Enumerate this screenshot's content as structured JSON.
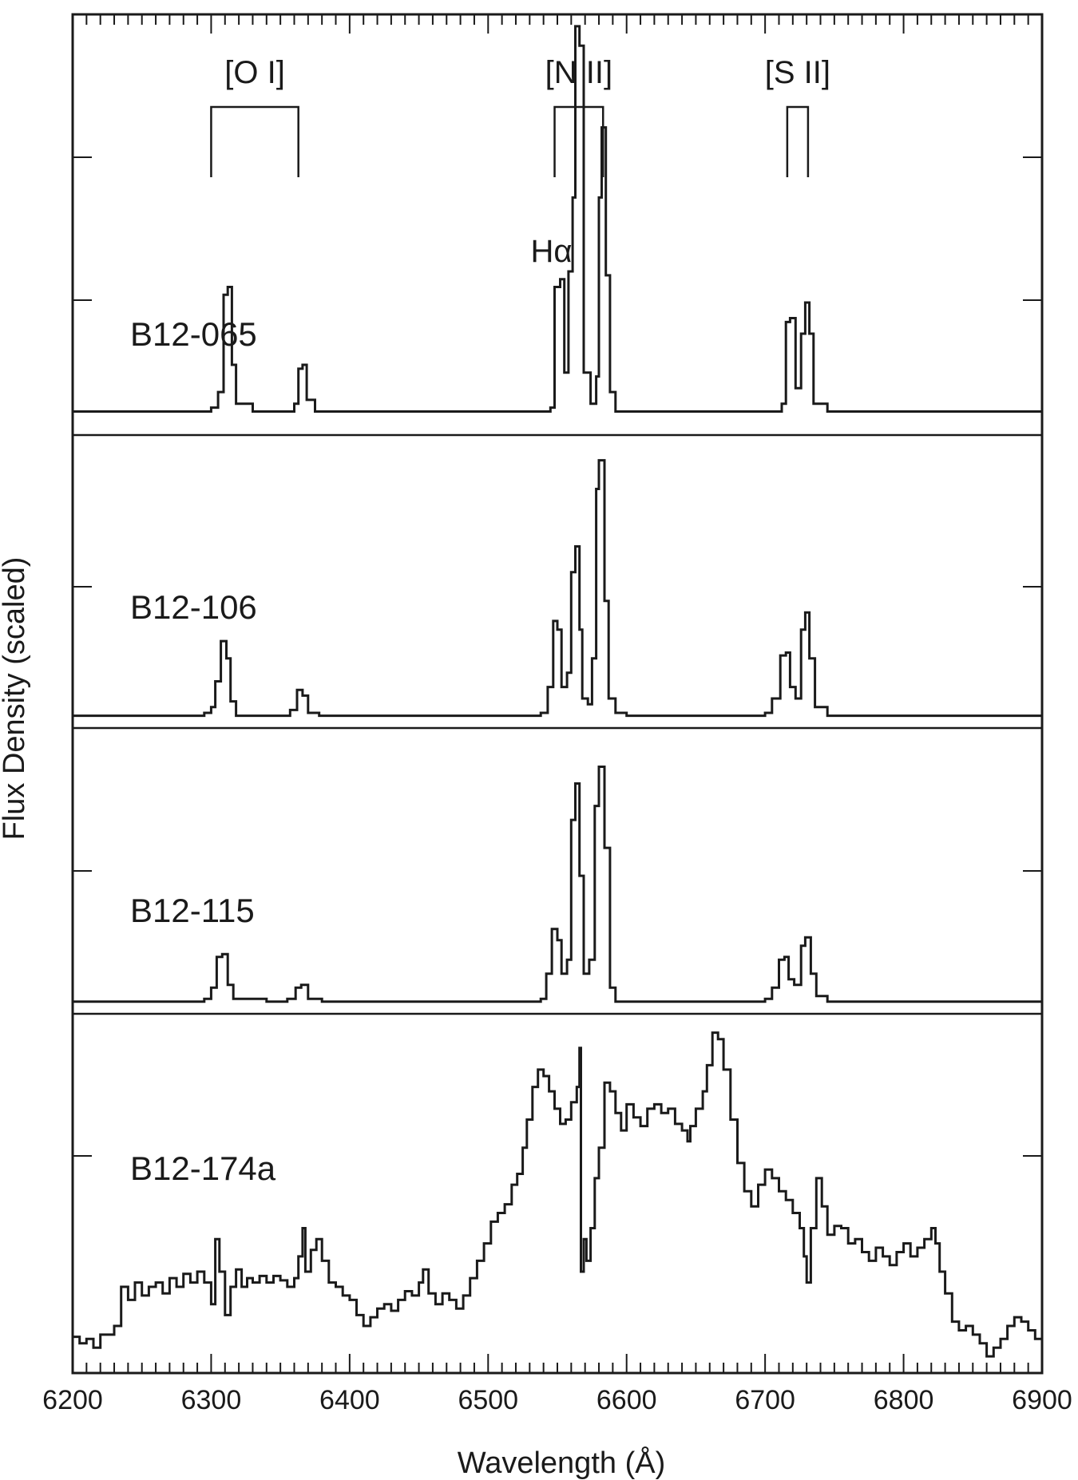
{
  "chart_data": {
    "type": "line",
    "title": "",
    "xlabel": "Wavelength (Å)",
    "ylabel": "Flux Density (scaled)",
    "xlim": [
      6200,
      6900
    ],
    "x_ticks": [
      "6200",
      "6300",
      "6400",
      "6500",
      "6600",
      "6700",
      "6800",
      "6900"
    ],
    "x_minor_step": 10,
    "grid": false,
    "legend": "none",
    "stacked_panels": true,
    "line_identifications": [
      {
        "label": "[O I]",
        "lines": [
          6300,
          6363
        ]
      },
      {
        "label": "[N II]",
        "lines": [
          6548,
          6583
        ]
      },
      {
        "label": "[S II]",
        "lines": [
          6716,
          6731
        ]
      }
    ],
    "annotations": [
      {
        "text": "Hα",
        "x": 6563
      }
    ],
    "series": [
      {
        "name": "B12-065",
        "ylim": [
          -0.04,
          1.0
        ],
        "points": [
          [
            6200,
            0.0
          ],
          [
            6240,
            0.0
          ],
          [
            6300,
            0.01
          ],
          [
            6305,
            0.05
          ],
          [
            6309,
            0.3
          ],
          [
            6312,
            0.32
          ],
          [
            6315,
            0.12
          ],
          [
            6318,
            0.02
          ],
          [
            6330,
            0.0
          ],
          [
            6350,
            0.0
          ],
          [
            6360,
            0.02
          ],
          [
            6363,
            0.11
          ],
          [
            6366,
            0.12
          ],
          [
            6369,
            0.03
          ],
          [
            6375,
            0.0
          ],
          [
            6420,
            0.0
          ],
          [
            6480,
            0.0
          ],
          [
            6530,
            0.0
          ],
          [
            6545,
            0.01
          ],
          [
            6548,
            0.32
          ],
          [
            6552,
            0.34
          ],
          [
            6555,
            0.1
          ],
          [
            6558,
            0.36
          ],
          [
            6561,
            0.55
          ],
          [
            6563,
            0.99
          ],
          [
            6566,
            0.94
          ],
          [
            6569,
            0.1
          ],
          [
            6574,
            0.02
          ],
          [
            6578,
            0.09
          ],
          [
            6580,
            0.55
          ],
          [
            6582,
            0.73
          ],
          [
            6585,
            0.35
          ],
          [
            6588,
            0.05
          ],
          [
            6592,
            0.0
          ],
          [
            6650,
            0.0
          ],
          [
            6705,
            0.0
          ],
          [
            6712,
            0.02
          ],
          [
            6715,
            0.23
          ],
          [
            6718,
            0.24
          ],
          [
            6722,
            0.06
          ],
          [
            6726,
            0.2
          ],
          [
            6729,
            0.28
          ],
          [
            6732,
            0.2
          ],
          [
            6735,
            0.02
          ],
          [
            6745,
            0.0
          ],
          [
            6800,
            0.0
          ],
          [
            6860,
            0.0
          ],
          [
            6900,
            0.0
          ]
        ]
      },
      {
        "name": "B12-106",
        "ylim": [
          -0.015,
          0.95
        ],
        "points": [
          [
            6200,
            0.0
          ],
          [
            6240,
            0.0
          ],
          [
            6295,
            0.01
          ],
          [
            6300,
            0.03
          ],
          [
            6303,
            0.12
          ],
          [
            6307,
            0.26
          ],
          [
            6311,
            0.2
          ],
          [
            6314,
            0.05
          ],
          [
            6318,
            0.0
          ],
          [
            6350,
            0.0
          ],
          [
            6357,
            0.02
          ],
          [
            6362,
            0.09
          ],
          [
            6366,
            0.07
          ],
          [
            6370,
            0.01
          ],
          [
            6378,
            0.0
          ],
          [
            6450,
            0.0
          ],
          [
            6500,
            0.0
          ],
          [
            6538,
            0.01
          ],
          [
            6543,
            0.1
          ],
          [
            6547,
            0.33
          ],
          [
            6550,
            0.3
          ],
          [
            6553,
            0.1
          ],
          [
            6557,
            0.15
          ],
          [
            6560,
            0.5
          ],
          [
            6563,
            0.59
          ],
          [
            6566,
            0.3
          ],
          [
            6568,
            0.06
          ],
          [
            6572,
            0.04
          ],
          [
            6575,
            0.2
          ],
          [
            6578,
            0.79
          ],
          [
            6580,
            0.89
          ],
          [
            6584,
            0.4
          ],
          [
            6587,
            0.06
          ],
          [
            6592,
            0.01
          ],
          [
            6600,
            0.0
          ],
          [
            6660,
            0.0
          ],
          [
            6700,
            0.01
          ],
          [
            6705,
            0.06
          ],
          [
            6711,
            0.21
          ],
          [
            6715,
            0.22
          ],
          [
            6718,
            0.1
          ],
          [
            6722,
            0.06
          ],
          [
            6726,
            0.3
          ],
          [
            6729,
            0.36
          ],
          [
            6732,
            0.2
          ],
          [
            6736,
            0.03
          ],
          [
            6745,
            0.0
          ],
          [
            6820,
            0.0
          ],
          [
            6900,
            0.0
          ]
        ]
      },
      {
        "name": "B12-115",
        "ylim": [
          -0.015,
          0.95
        ],
        "points": [
          [
            6200,
            0.0
          ],
          [
            6240,
            0.0
          ],
          [
            6295,
            0.01
          ],
          [
            6300,
            0.05
          ],
          [
            6304,
            0.16
          ],
          [
            6308,
            0.17
          ],
          [
            6312,
            0.06
          ],
          [
            6316,
            0.01
          ],
          [
            6340,
            0.0
          ],
          [
            6355,
            0.01
          ],
          [
            6361,
            0.05
          ],
          [
            6365,
            0.06
          ],
          [
            6370,
            0.01
          ],
          [
            6380,
            0.0
          ],
          [
            6450,
            0.0
          ],
          [
            6500,
            0.0
          ],
          [
            6538,
            0.01
          ],
          [
            6542,
            0.1
          ],
          [
            6546,
            0.26
          ],
          [
            6550,
            0.22
          ],
          [
            6553,
            0.1
          ],
          [
            6557,
            0.15
          ],
          [
            6560,
            0.65
          ],
          [
            6563,
            0.78
          ],
          [
            6566,
            0.45
          ],
          [
            6569,
            0.1
          ],
          [
            6573,
            0.15
          ],
          [
            6577,
            0.7
          ],
          [
            6580,
            0.84
          ],
          [
            6584,
            0.55
          ],
          [
            6588,
            0.05
          ],
          [
            6592,
            0.0
          ],
          [
            6660,
            0.0
          ],
          [
            6700,
            0.01
          ],
          [
            6705,
            0.05
          ],
          [
            6710,
            0.15
          ],
          [
            6714,
            0.16
          ],
          [
            6717,
            0.08
          ],
          [
            6721,
            0.06
          ],
          [
            6726,
            0.2
          ],
          [
            6729,
            0.23
          ],
          [
            6733,
            0.1
          ],
          [
            6737,
            0.02
          ],
          [
            6745,
            0.0
          ],
          [
            6820,
            0.0
          ],
          [
            6900,
            0.0
          ]
        ]
      },
      {
        "name": "B12-174a",
        "ylim": [
          -0.08,
          1.5
        ],
        "points": [
          [
            6200,
            0.05
          ],
          [
            6205,
            0.02
          ],
          [
            6210,
            0.04
          ],
          [
            6215,
            0.0
          ],
          [
            6220,
            0.06
          ],
          [
            6230,
            0.1
          ],
          [
            6235,
            0.28
          ],
          [
            6240,
            0.22
          ],
          [
            6245,
            0.3
          ],
          [
            6250,
            0.24
          ],
          [
            6255,
            0.28
          ],
          [
            6260,
            0.3
          ],
          [
            6265,
            0.25
          ],
          [
            6270,
            0.32
          ],
          [
            6275,
            0.28
          ],
          [
            6280,
            0.34
          ],
          [
            6285,
            0.3
          ],
          [
            6290,
            0.35
          ],
          [
            6295,
            0.3
          ],
          [
            6300,
            0.2
          ],
          [
            6303,
            0.5
          ],
          [
            6306,
            0.35
          ],
          [
            6310,
            0.15
          ],
          [
            6314,
            0.28
          ],
          [
            6318,
            0.36
          ],
          [
            6322,
            0.28
          ],
          [
            6326,
            0.32
          ],
          [
            6330,
            0.3
          ],
          [
            6335,
            0.33
          ],
          [
            6340,
            0.3
          ],
          [
            6345,
            0.33
          ],
          [
            6350,
            0.31
          ],
          [
            6355,
            0.28
          ],
          [
            6360,
            0.32
          ],
          [
            6363,
            0.42
          ],
          [
            6366,
            0.55
          ],
          [
            6368,
            0.35
          ],
          [
            6372,
            0.45
          ],
          [
            6376,
            0.5
          ],
          [
            6380,
            0.4
          ],
          [
            6385,
            0.3
          ],
          [
            6390,
            0.28
          ],
          [
            6395,
            0.24
          ],
          [
            6400,
            0.22
          ],
          [
            6405,
            0.15
          ],
          [
            6410,
            0.1
          ],
          [
            6415,
            0.14
          ],
          [
            6420,
            0.18
          ],
          [
            6425,
            0.2
          ],
          [
            6430,
            0.17
          ],
          [
            6435,
            0.22
          ],
          [
            6440,
            0.26
          ],
          [
            6445,
            0.24
          ],
          [
            6450,
            0.3
          ],
          [
            6453,
            0.36
          ],
          [
            6457,
            0.25
          ],
          [
            6462,
            0.2
          ],
          [
            6467,
            0.25
          ],
          [
            6472,
            0.22
          ],
          [
            6477,
            0.18
          ],
          [
            6482,
            0.24
          ],
          [
            6487,
            0.32
          ],
          [
            6492,
            0.4
          ],
          [
            6497,
            0.48
          ],
          [
            6502,
            0.58
          ],
          [
            6507,
            0.62
          ],
          [
            6512,
            0.66
          ],
          [
            6517,
            0.75
          ],
          [
            6521,
            0.8
          ],
          [
            6525,
            0.92
          ],
          [
            6528,
            1.05
          ],
          [
            6532,
            1.2
          ],
          [
            6536,
            1.28
          ],
          [
            6540,
            1.25
          ],
          [
            6544,
            1.18
          ],
          [
            6548,
            1.1
          ],
          [
            6552,
            1.03
          ],
          [
            6556,
            1.05
          ],
          [
            6560,
            1.13
          ],
          [
            6564,
            1.2
          ],
          [
            6566,
            1.38
          ],
          [
            6567,
            0.35
          ],
          [
            6569,
            0.5
          ],
          [
            6571,
            0.4
          ],
          [
            6574,
            0.55
          ],
          [
            6577,
            0.78
          ],
          [
            6580,
            0.92
          ],
          [
            6584,
            1.22
          ],
          [
            6588,
            1.18
          ],
          [
            6592,
            1.08
          ],
          [
            6596,
            1.0
          ],
          [
            6600,
            1.12
          ],
          [
            6605,
            1.06
          ],
          [
            6610,
            1.02
          ],
          [
            6615,
            1.1
          ],
          [
            6620,
            1.12
          ],
          [
            6625,
            1.08
          ],
          [
            6630,
            1.1
          ],
          [
            6635,
            1.03
          ],
          [
            6640,
            1.0
          ],
          [
            6644,
            0.95
          ],
          [
            6646,
            1.02
          ],
          [
            6650,
            1.1
          ],
          [
            6655,
            1.18
          ],
          [
            6658,
            1.3
          ],
          [
            6662,
            1.45
          ],
          [
            6666,
            1.42
          ],
          [
            6670,
            1.28
          ],
          [
            6675,
            1.05
          ],
          [
            6680,
            0.85
          ],
          [
            6685,
            0.72
          ],
          [
            6690,
            0.65
          ],
          [
            6695,
            0.75
          ],
          [
            6700,
            0.82
          ],
          [
            6705,
            0.78
          ],
          [
            6710,
            0.72
          ],
          [
            6715,
            0.68
          ],
          [
            6720,
            0.62
          ],
          [
            6725,
            0.55
          ],
          [
            6728,
            0.42
          ],
          [
            6730,
            0.3
          ],
          [
            6733,
            0.55
          ],
          [
            6737,
            0.78
          ],
          [
            6741,
            0.65
          ],
          [
            6745,
            0.52
          ],
          [
            6750,
            0.56
          ],
          [
            6755,
            0.55
          ],
          [
            6760,
            0.48
          ],
          [
            6765,
            0.5
          ],
          [
            6770,
            0.44
          ],
          [
            6775,
            0.4
          ],
          [
            6780,
            0.46
          ],
          [
            6785,
            0.42
          ],
          [
            6790,
            0.38
          ],
          [
            6795,
            0.44
          ],
          [
            6800,
            0.48
          ],
          [
            6805,
            0.42
          ],
          [
            6810,
            0.46
          ],
          [
            6815,
            0.5
          ],
          [
            6820,
            0.55
          ],
          [
            6823,
            0.48
          ],
          [
            6826,
            0.35
          ],
          [
            6830,
            0.25
          ],
          [
            6835,
            0.12
          ],
          [
            6840,
            0.08
          ],
          [
            6845,
            0.1
          ],
          [
            6850,
            0.06
          ],
          [
            6855,
            0.02
          ],
          [
            6860,
            -0.04
          ],
          [
            6865,
            0.0
          ],
          [
            6870,
            0.04
          ],
          [
            6875,
            0.1
          ],
          [
            6880,
            0.14
          ],
          [
            6885,
            0.12
          ],
          [
            6890,
            0.08
          ],
          [
            6895,
            0.04
          ],
          [
            6900,
            0.0
          ]
        ]
      }
    ]
  },
  "colors": {
    "line": "#1a1a1a",
    "axis": "#1a1a1a",
    "background": "#ffffff"
  }
}
